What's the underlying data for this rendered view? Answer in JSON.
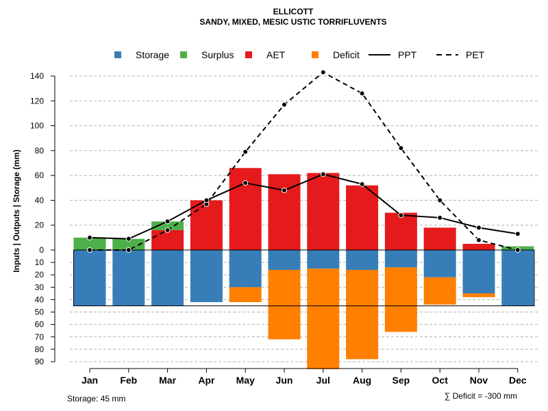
{
  "chart_data": {
    "type": "bar",
    "title": "ELLICOTT",
    "subtitle": "SANDY, MIXED, MESIC USTIC TORRIFLUVENTS",
    "ylabel": "Inputs | Outputs | Storage    (mm)",
    "categories": [
      "Jan",
      "Feb",
      "Mar",
      "Apr",
      "May",
      "Jun",
      "Jul",
      "Aug",
      "Sep",
      "Oct",
      "Nov",
      "Dec"
    ],
    "ylim": [
      -90,
      150
    ],
    "y_ticks_up": [
      0,
      20,
      40,
      60,
      80,
      100,
      120,
      140
    ],
    "y_ticks_down": [
      10,
      20,
      30,
      40,
      50,
      60,
      70,
      80,
      90
    ],
    "storage_capacity": 45,
    "series": [
      {
        "name": "Storage",
        "color": "#377eb8",
        "values": [
          45,
          45,
          45,
          42,
          30,
          16,
          15,
          16,
          14,
          22,
          35,
          45
        ]
      },
      {
        "name": "Surplus",
        "color": "#4daf4a",
        "values": [
          10,
          9,
          7,
          0,
          0,
          0,
          0,
          0,
          0,
          0,
          0,
          3
        ]
      },
      {
        "name": "AET",
        "color": "#e41a1c",
        "values": [
          0,
          0,
          16,
          40,
          66,
          61,
          62,
          52,
          30,
          18,
          5,
          0
        ]
      },
      {
        "name": "Deficit",
        "color": "#ff7f00",
        "values": [
          0,
          0,
          0,
          0,
          12,
          56,
          81,
          72,
          52,
          22,
          3,
          0
        ]
      },
      {
        "name": "PPT",
        "style": "solid",
        "values": [
          10,
          9,
          23,
          40,
          54,
          48,
          61,
          53,
          28,
          26,
          18,
          13
        ]
      },
      {
        "name": "PET",
        "style": "dashed",
        "values": [
          0,
          0,
          16,
          37,
          79,
          117,
          143,
          126,
          82,
          40,
          8,
          0
        ]
      }
    ],
    "legend": [
      "Storage",
      "Surplus",
      "AET",
      "Deficit",
      "PPT",
      "PET"
    ],
    "legend_position": "top",
    "storage_note": "Storage: 45 mm",
    "deficit_note": "∑ Deficit = -300 mm"
  }
}
